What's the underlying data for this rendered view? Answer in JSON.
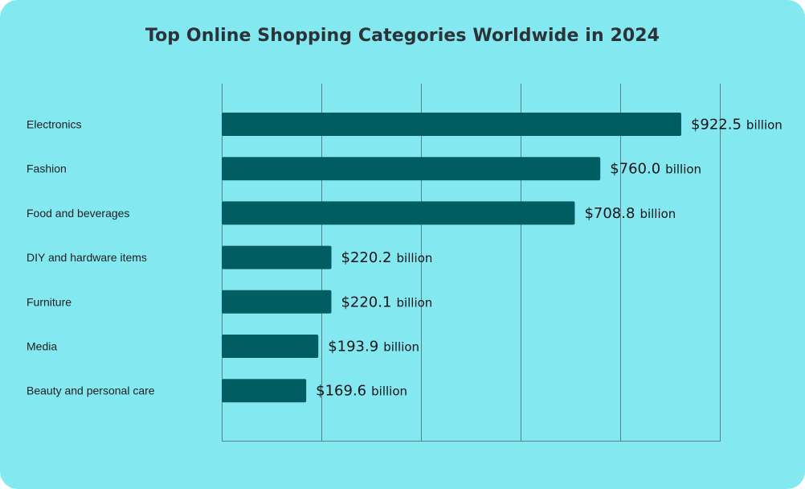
{
  "chart_data": {
    "type": "bar",
    "orientation": "horizontal",
    "title": "Top Online Shopping Categories Worldwide in 2024",
    "xlabel": "",
    "ylabel": "",
    "categories": [
      "Electronics",
      "Fashion",
      "Food and beverages",
      "DIY and hardware items",
      "Furniture",
      "Media",
      "Beauty and personal care"
    ],
    "values": [
      922.5,
      760.0,
      708.8,
      220.2,
      220.1,
      193.9,
      169.6
    ],
    "value_labels": [
      "$922.5",
      "$760.0",
      "$708.8",
      "$220.2",
      "$220.1",
      "$193.9",
      "$169.6"
    ],
    "value_unit": "billion",
    "xlim": [
      0,
      1000
    ],
    "x_gridlines": [
      0,
      200,
      400,
      600,
      800,
      1000
    ],
    "grid": true,
    "legend": "none",
    "colors": {
      "background": "#83e8f0",
      "bar": "#005e63",
      "grid": "#5b7f85",
      "title": "#2b3338"
    }
  }
}
